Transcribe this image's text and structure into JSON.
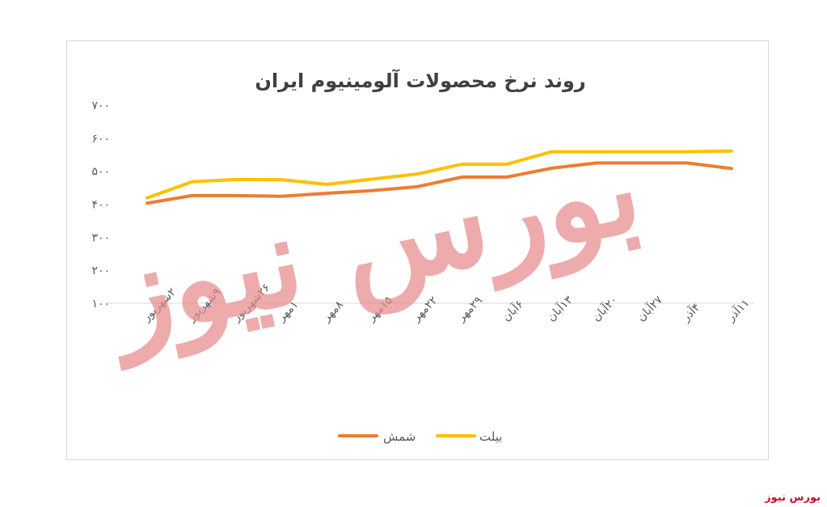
{
  "watermark": {
    "text": "بورس نیوز",
    "color": "#e88b8b"
  },
  "footer": {
    "brand": "بورس نیوز"
  },
  "chart_data": {
    "type": "line",
    "title": "روند نرخ محصولات آلومینیوم ایران",
    "xlabel": "",
    "ylabel": "",
    "ylim": [
      100,
      700
    ],
    "y_ticks": [
      "۱۰۰",
      "۲۰۰",
      "۳۰۰",
      "۴۰۰",
      "۵۰۰",
      "۶۰۰",
      "۷۰۰"
    ],
    "grid": "y-axis baseline only",
    "legend_position": "bottom",
    "categories": [
      "۲شهریور",
      "۹شهریور",
      "۲۶شهریور",
      "۱مهر",
      "۸مهر",
      "۱۵مهر",
      "۲۲مهر",
      "۲۹مهر",
      "۶آبان",
      "۱۳آبان",
      "۲۰آبان",
      "۲۷آبان",
      "۴آذر",
      "۱۱آذر"
    ],
    "series": [
      {
        "name": "شمش",
        "color": "#ed7d31",
        "values": [
          403,
          426,
          426,
          424,
          433,
          441,
          453,
          482,
          482,
          509,
          525,
          525,
          525,
          508
        ]
      },
      {
        "name": "بیلت",
        "color": "#ffc000",
        "values": [
          419,
          468,
          475,
          474,
          460,
          476,
          491,
          521,
          521,
          559,
          559,
          559,
          559,
          561
        ]
      }
    ]
  }
}
